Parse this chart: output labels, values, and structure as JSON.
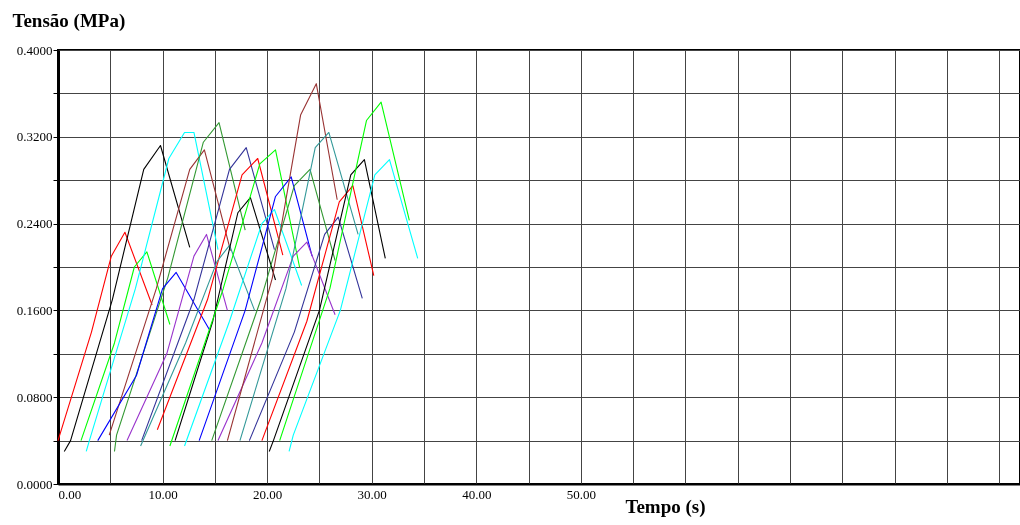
{
  "chart_data": {
    "type": "line",
    "xlabel": "Tempo (s)",
    "ylabel": "Tensão (MPa)",
    "xlim": [
      0,
      92
    ],
    "ylim": [
      0,
      0.4
    ],
    "xticks": [
      {
        "value": 0,
        "label": "0.00"
      },
      {
        "value": 5,
        "label": null
      },
      {
        "value": 10,
        "label": "10.00"
      },
      {
        "value": 15,
        "label": null
      },
      {
        "value": 20,
        "label": "20.00"
      },
      {
        "value": 25,
        "label": null
      },
      {
        "value": 30,
        "label": "30.00"
      },
      {
        "value": 35,
        "label": null
      },
      {
        "value": 40,
        "label": "40.00"
      },
      {
        "value": 45,
        "label": null
      },
      {
        "value": 50,
        "label": "50.00"
      },
      {
        "value": 55,
        "label": null
      },
      {
        "value": 60,
        "label": null
      },
      {
        "value": 65,
        "label": null
      },
      {
        "value": 70,
        "label": null
      },
      {
        "value": 75,
        "label": null
      },
      {
        "value": 80,
        "label": null
      },
      {
        "value": 85,
        "label": null
      },
      {
        "value": 90,
        "label": null
      }
    ],
    "yticks": [
      {
        "value": 0,
        "label": "0.0000"
      },
      {
        "value": 0.04,
        "label": null
      },
      {
        "value": 0.08,
        "label": "0.0800"
      },
      {
        "value": 0.12,
        "label": null
      },
      {
        "value": 0.16,
        "label": "0.1600"
      },
      {
        "value": 0.2,
        "label": null
      },
      {
        "value": 0.24,
        "label": "0.2400"
      },
      {
        "value": 0.28,
        "label": null
      },
      {
        "value": 0.32,
        "label": "0.3200"
      },
      {
        "value": 0.36,
        "label": null
      },
      {
        "value": 0.4,
        "label": "0.4000"
      }
    ],
    "grid": true,
    "legend": false,
    "line_style": "solid",
    "series": [
      {
        "color": "#ff0000",
        "x": [
          0,
          3.2,
          5.1,
          6.4,
          9.0
        ],
        "values": [
          0.04,
          0.14,
          0.21,
          0.232,
          0.165
        ]
      },
      {
        "color": "#000000",
        "x": [
          0.6,
          1.2,
          5.2,
          8.2,
          9.8,
          12.6
        ],
        "values": [
          0.03,
          0.04,
          0.17,
          0.29,
          0.312,
          0.218
        ]
      },
      {
        "color": "#00ff00",
        "x": [
          2.2,
          5.4,
          7.3,
          8.5,
          10.7
        ],
        "values": [
          0.04,
          0.13,
          0.2,
          0.214,
          0.147
        ]
      },
      {
        "color": "#00ffff",
        "x": [
          2.7,
          3.0,
          7.4,
          10.6,
          12.1,
          13.0,
          15.3
        ],
        "values": [
          0.03,
          0.04,
          0.18,
          0.3,
          0.324,
          0.324,
          0.216
        ]
      },
      {
        "color": "#993333",
        "x": [
          4.9,
          9.4,
          12.6,
          14.0,
          16.5
        ],
        "values": [
          0.045,
          0.18,
          0.29,
          0.308,
          0.215
        ]
      },
      {
        "color": "#339933",
        "x": [
          5.4,
          5.6,
          10.5,
          13.9,
          15.4,
          17.9
        ],
        "values": [
          0.03,
          0.045,
          0.19,
          0.315,
          0.333,
          0.234
        ]
      },
      {
        "color": "#0000ff",
        "x": [
          3.8,
          7.5,
          10.0,
          11.3,
          14.5
        ],
        "values": [
          0.04,
          0.1,
          0.18,
          0.195,
          0.142
        ]
      },
      {
        "color": "#9933cc",
        "x": [
          6.6,
          10.4,
          13.0,
          14.2,
          16.2
        ],
        "values": [
          0.04,
          0.12,
          0.21,
          0.23,
          0.16
        ]
      },
      {
        "color": "#333399",
        "x": [
          8.0,
          13.0,
          16.4,
          18.0,
          20.7
        ],
        "values": [
          0.04,
          0.17,
          0.29,
          0.31,
          0.216
        ]
      },
      {
        "color": "#ff0000",
        "x": [
          9.5,
          14.3,
          17.6,
          19.1,
          21.5
        ],
        "values": [
          0.05,
          0.17,
          0.285,
          0.3,
          0.211
        ]
      },
      {
        "color": "#339999",
        "x": [
          7.9,
          12.2,
          15.2,
          16.4,
          18.8
        ],
        "values": [
          0.035,
          0.13,
          0.205,
          0.22,
          0.16
        ]
      },
      {
        "color": "#000000",
        "x": [
          11.2,
          14.8,
          17.2,
          18.4,
          20.8
        ],
        "values": [
          0.04,
          0.15,
          0.25,
          0.264,
          0.188
        ]
      },
      {
        "color": "#00ff00",
        "x": [
          10.7,
          15.8,
          19.3,
          20.8,
          23.1
        ],
        "values": [
          0.035,
          0.18,
          0.295,
          0.308,
          0.2
        ]
      },
      {
        "color": "#00ffff",
        "x": [
          12.1,
          16.4,
          19.5,
          20.7,
          23.3
        ],
        "values": [
          0.035,
          0.15,
          0.24,
          0.253,
          0.183
        ]
      },
      {
        "color": "#0000ff",
        "x": [
          13.5,
          17.9,
          20.8,
          22.3,
          24.3
        ],
        "values": [
          0.04,
          0.16,
          0.265,
          0.283,
          0.21
        ]
      },
      {
        "color": "#339933",
        "x": [
          14.7,
          19.4,
          22.6,
          24.1,
          26.5
        ],
        "values": [
          0.04,
          0.17,
          0.275,
          0.29,
          0.206
        ]
      },
      {
        "color": "#9933cc",
        "x": [
          15.3,
          19.5,
          22.5,
          23.8,
          26.5
        ],
        "values": [
          0.04,
          0.13,
          0.21,
          0.223,
          0.156
        ]
      },
      {
        "color": "#993333",
        "x": [
          16.2,
          20.5,
          23.2,
          24.7,
          26.7
        ],
        "values": [
          0.04,
          0.19,
          0.34,
          0.369,
          0.262
        ]
      },
      {
        "color": "#339999",
        "x": [
          17.4,
          21.8,
          24.6,
          25.9,
          28.7
        ],
        "values": [
          0.04,
          0.18,
          0.31,
          0.324,
          0.23
        ]
      },
      {
        "color": "#333399",
        "x": [
          18.3,
          22.6,
          25.5,
          26.8,
          29.1
        ],
        "values": [
          0.04,
          0.14,
          0.23,
          0.246,
          0.171
        ]
      },
      {
        "color": "#ff0000",
        "x": [
          19.5,
          23.8,
          26.9,
          28.2,
          30.2
        ],
        "values": [
          0.04,
          0.15,
          0.26,
          0.275,
          0.192
        ]
      },
      {
        "color": "#000000",
        "x": [
          20.2,
          20.6,
          25.0,
          28.0,
          29.3,
          31.3
        ],
        "values": [
          0.03,
          0.04,
          0.16,
          0.285,
          0.299,
          0.208
        ]
      },
      {
        "color": "#00ff00",
        "x": [
          21.2,
          26.0,
          29.5,
          30.9,
          33.6
        ],
        "values": [
          0.04,
          0.18,
          0.335,
          0.352,
          0.243
        ]
      },
      {
        "color": "#00ffff",
        "x": [
          22.1,
          22.5,
          27.0,
          30.3,
          31.7,
          34.4
        ],
        "values": [
          0.03,
          0.045,
          0.16,
          0.285,
          0.299,
          0.208
        ]
      }
    ]
  }
}
